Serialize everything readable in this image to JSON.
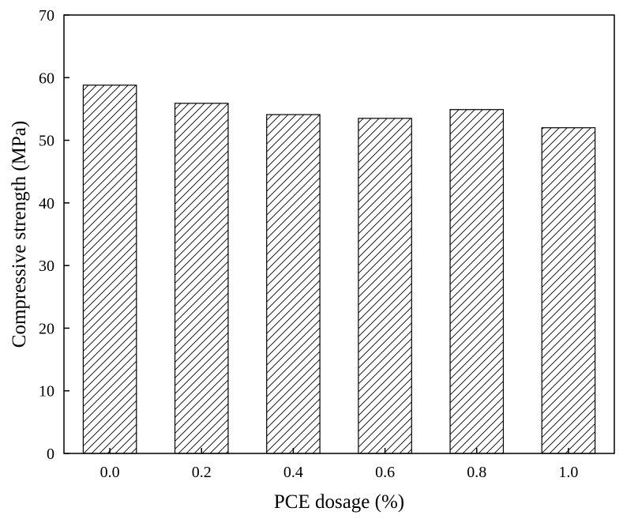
{
  "chart_data": {
    "type": "bar",
    "title": "",
    "xlabel": "PCE dosage (%)",
    "ylabel": "Compressive strength (MPa)",
    "categories": [
      "0.0",
      "0.2",
      "0.4",
      "0.6",
      "0.8",
      "1.0"
    ],
    "values": [
      58.8,
      55.9,
      54.1,
      53.5,
      54.9,
      52.0
    ],
    "ylim": [
      0,
      70
    ],
    "yticks": [
      0,
      10,
      20,
      30,
      40,
      50,
      60,
      70
    ],
    "ytick_labels": [
      "0",
      "10",
      "20",
      "30",
      "40",
      "50",
      "60",
      "70"
    ],
    "grid": false,
    "legend": "none",
    "bar_fill": "hatched (diagonal lines)",
    "colors": {
      "bar_edge": "#000000",
      "hatch": "#000000",
      "background": "#ffffff"
    }
  }
}
